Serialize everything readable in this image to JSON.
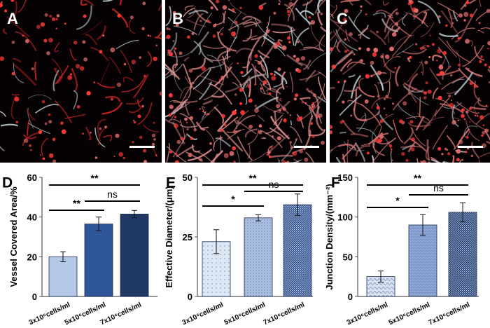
{
  "panels": {
    "A": {
      "label": "A"
    },
    "B": {
      "label": "B"
    },
    "C": {
      "label": "C"
    }
  },
  "colors": {
    "D": [
      "#b4c7e7",
      "#2e5597",
      "#203864"
    ],
    "E": [
      "#dde6f3",
      "#a9bde1",
      "#2f4f8a"
    ],
    "F": [
      "#dae3f3",
      "#8fa9d8",
      "#1f3b70"
    ]
  },
  "chart_data": [
    {
      "type": "bar",
      "panel": "D",
      "ylabel": "Vessel Covered Area/%",
      "categories": [
        "3x10⁶cells/ml",
        "5x10⁶cells/ml",
        "7x10⁶cells/ml"
      ],
      "values": [
        20,
        36.5,
        41.5
      ],
      "errors": [
        2.5,
        3.5,
        1.8
      ],
      "ylim": [
        0,
        60
      ],
      "yticks": [
        0,
        20,
        40,
        60
      ],
      "significance": [
        {
          "from": 0,
          "to": 2,
          "label": "**"
        },
        {
          "from": 1,
          "to": 2,
          "label": "ns"
        },
        {
          "from": 0,
          "to": 1,
          "label": "**"
        }
      ]
    },
    {
      "type": "bar",
      "panel": "E",
      "ylabel": "Effective Diameter/(μm)",
      "categories": [
        "3x10⁶cells/ml",
        "5x10⁶cells/ml",
        "7x10⁶cells/ml"
      ],
      "values": [
        23,
        33,
        38.5
      ],
      "errors": [
        5,
        1.3,
        4.5
      ],
      "ylim": [
        0,
        50
      ],
      "yticks": [
        0,
        25,
        50
      ],
      "significance": [
        {
          "from": 0,
          "to": 2,
          "label": "**"
        },
        {
          "from": 0,
          "to": 1,
          "label": "*"
        },
        {
          "from": 1,
          "to": 2,
          "label": "ns"
        }
      ]
    },
    {
      "type": "bar",
      "panel": "F",
      "ylabel": "Junction Density/(mm⁻²)",
      "categories": [
        "3x10⁶cells/ml",
        "5x10⁶cells/ml",
        "7x10⁶cells/ml"
      ],
      "values": [
        25,
        90,
        106
      ],
      "errors": [
        7,
        13,
        12
      ],
      "ylim": [
        0,
        150
      ],
      "yticks": [
        0,
        50,
        100,
        150
      ],
      "significance": [
        {
          "from": 0,
          "to": 2,
          "label": "**"
        },
        {
          "from": 0,
          "to": 1,
          "label": "*"
        },
        {
          "from": 1,
          "to": 2,
          "label": "ns"
        }
      ]
    }
  ]
}
